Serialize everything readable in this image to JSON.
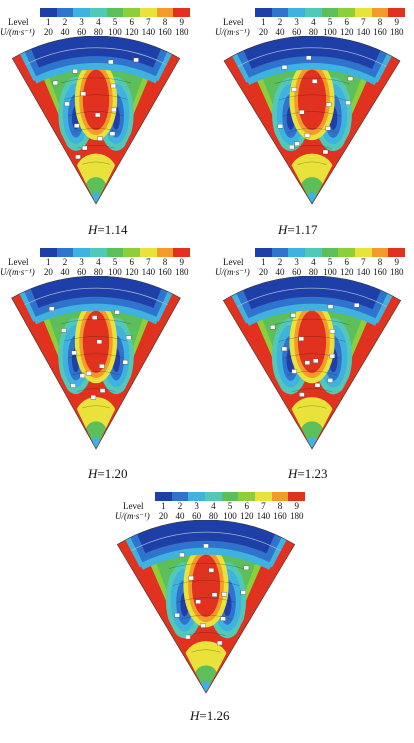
{
  "legend": {
    "level_label": "Level",
    "velocity_label": "U/(m·s⁻¹)",
    "levels": [
      "1",
      "2",
      "3",
      "4",
      "5",
      "6",
      "7",
      "8",
      "9"
    ],
    "velocities": [
      "20",
      "40",
      "60",
      "80",
      "100",
      "120",
      "140",
      "160",
      "180"
    ],
    "colors": [
      "#1f3fa8",
      "#2f73cc",
      "#3fb2e0",
      "#52c8b8",
      "#5cbf5a",
      "#8ccf3a",
      "#e9e23a",
      "#f29a2a",
      "#e0321f"
    ]
  },
  "chart_data": [
    {
      "type": "heatmap",
      "caption_var": "H",
      "caption_value": "=1.14"
    },
    {
      "type": "heatmap",
      "caption_var": "H",
      "caption_value": "=1.17"
    },
    {
      "type": "heatmap",
      "caption_var": "H",
      "caption_value": "=1.20"
    },
    {
      "type": "heatmap",
      "caption_var": "H",
      "caption_value": "=1.23"
    },
    {
      "type": "heatmap",
      "caption_var": "H",
      "caption_value": "=1.26"
    }
  ]
}
